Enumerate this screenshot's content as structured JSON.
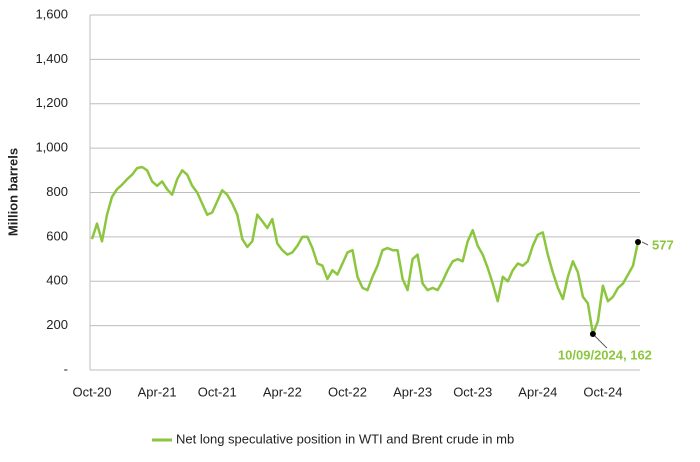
{
  "chart_data": {
    "type": "line",
    "y_label": "Million barrels",
    "categories": [
      "Oct-20",
      null,
      null,
      null,
      null,
      null,
      null,
      null,
      null,
      null,
      null,
      null,
      null,
      "Apr-21",
      null,
      null,
      null,
      null,
      null,
      null,
      null,
      null,
      null,
      null,
      null,
      "Oct-21",
      null,
      null,
      null,
      null,
      null,
      null,
      null,
      null,
      null,
      null,
      null,
      null,
      "Apr-22",
      null,
      null,
      null,
      null,
      null,
      null,
      null,
      null,
      null,
      null,
      null,
      null,
      "Oct-22",
      null,
      null,
      null,
      null,
      null,
      null,
      null,
      null,
      null,
      null,
      null,
      null,
      "Apr-23",
      null,
      null,
      null,
      null,
      null,
      null,
      null,
      null,
      null,
      null,
      null,
      "Oct-23",
      null,
      null,
      null,
      null,
      null,
      null,
      null,
      null,
      null,
      null,
      null,
      null,
      "Apr-24",
      null,
      null,
      null,
      null,
      null,
      null,
      null,
      null,
      null,
      null,
      null,
      null,
      "Oct-24",
      null,
      null,
      null,
      null,
      null,
      null,
      null
    ],
    "series": [
      {
        "name": "Net long speculative position in WTI and Brent crude in mb",
        "color": "#8cc63f",
        "values": [
          590,
          660,
          580,
          700,
          780,
          815,
          835,
          860,
          880,
          910,
          915,
          900,
          850,
          830,
          850,
          815,
          790,
          860,
          900,
          880,
          830,
          800,
          750,
          700,
          710,
          760,
          810,
          790,
          750,
          700,
          590,
          555,
          580,
          700,
          670,
          640,
          680,
          570,
          540,
          520,
          530,
          560,
          600,
          600,
          550,
          480,
          470,
          410,
          450,
          430,
          480,
          530,
          540,
          420,
          370,
          360,
          420,
          470,
          540,
          550,
          540,
          540,
          410,
          360,
          500,
          520,
          390,
          360,
          370,
          360,
          400,
          450,
          490,
          500,
          490,
          580,
          630,
          560,
          520,
          460,
          390,
          310,
          420,
          400,
          450,
          480,
          470,
          490,
          560,
          610,
          620,
          520,
          440,
          370,
          320,
          420,
          490,
          440,
          330,
          300,
          162,
          220,
          380,
          310,
          330,
          370,
          390,
          430,
          470,
          577
        ]
      }
    ],
    "annotation": "10/09/2024, 162",
    "ylim": [
      0,
      1600
    ],
    "yticks": [
      {
        "value": 0,
        "label": "-"
      },
      200,
      400,
      600,
      800,
      {
        "value": 1000,
        "label": "1,000"
      },
      {
        "value": 1200,
        "label": "1,200"
      },
      {
        "value": 1400,
        "label": "1,400"
      },
      {
        "value": 1600,
        "label": "1,600"
      }
    ],
    "grid": true
  }
}
